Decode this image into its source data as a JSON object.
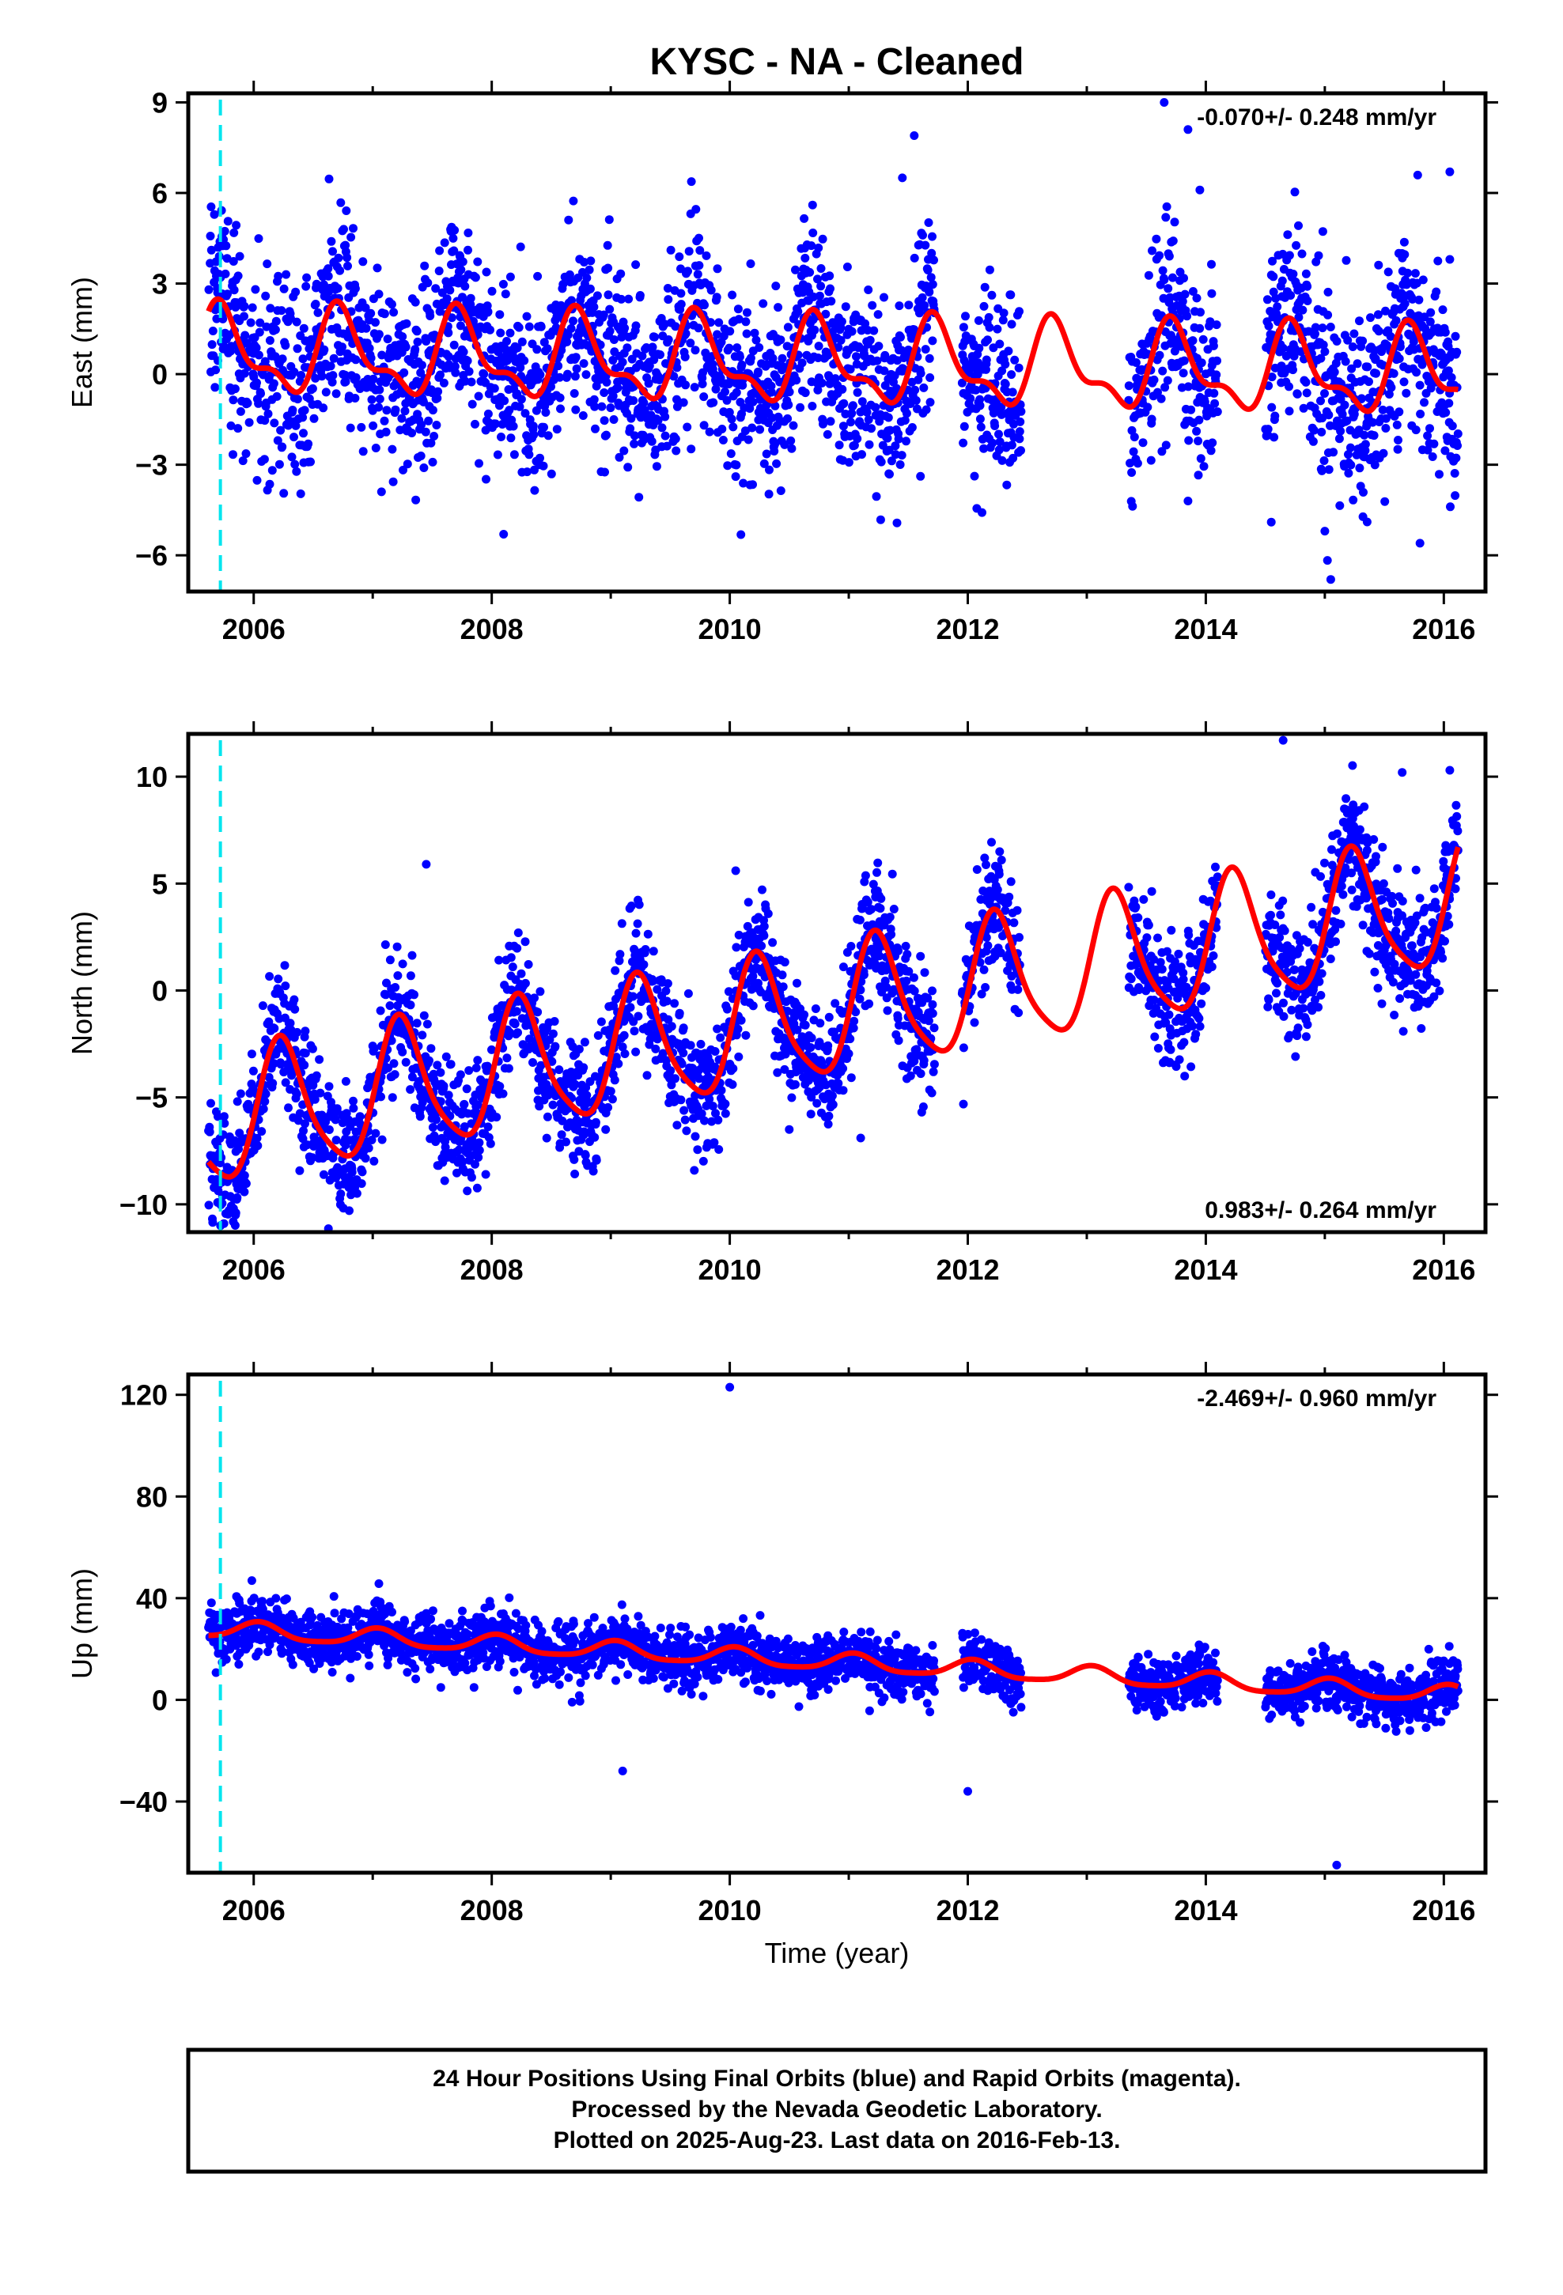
{
  "title": "KYSC  - NA - Cleaned",
  "x_axis_label": "Time (year)",
  "footer_lines": [
    "24 Hour Positions Using Final Orbits (blue) and Rapid Orbits (magenta).",
    "Processed by the Nevada Geodetic Laboratory.",
    "Plotted on 2025-Aug-23. Last data on 2016-Feb-13."
  ],
  "colors": {
    "observations": "#0000ff",
    "model": "#ff0000",
    "event_line": "#00e5ee",
    "frame": "#000000"
  },
  "chart_data": [
    {
      "type": "scatter",
      "ylabel": "East (mm)",
      "rate_text": "-0.070+/- 0.248 mm/yr",
      "rate_position": "top-right",
      "xlim": [
        2005.45,
        2016.35
      ],
      "ylim": [
        -7.2,
        9.3
      ],
      "x_ticks": [
        2006,
        2008,
        2010,
        2012,
        2014,
        2016
      ],
      "y_ticks": [
        -6,
        -3,
        0,
        3,
        6,
        9
      ],
      "event_line_x": 2005.72,
      "data_gaps": [
        [
          2011.72,
          2011.95
        ],
        [
          2012.45,
          2013.35
        ],
        [
          2014.1,
          2014.5
        ]
      ],
      "model": {
        "trend_mm_per_yr": -0.07,
        "offset_mm": 0.35,
        "annual_cos": -0.1,
        "annual_sin": -1.25,
        "semiannual_cos": -0.35,
        "semiannual_sin": 0.45
      },
      "scatter_sd_mm": 1.55,
      "outliers": [
        [
          2011.55,
          7.9
        ],
        [
          2011.45,
          6.5
        ],
        [
          2013.65,
          9.0
        ],
        [
          2013.85,
          8.1
        ],
        [
          2013.95,
          6.1
        ],
        [
          2016.05,
          6.7
        ],
        [
          2016.05,
          3.8
        ],
        [
          2015.05,
          -6.8
        ],
        [
          2015.0,
          -5.2
        ],
        [
          2015.8,
          -5.6
        ],
        [
          2014.55,
          -4.9
        ],
        [
          2008.1,
          -5.3
        ],
        [
          2013.85,
          -4.2
        ]
      ]
    },
    {
      "type": "scatter",
      "ylabel": "North (mm)",
      "rate_text": "0.983+/- 0.264 mm/yr",
      "rate_position": "bottom-right",
      "xlim": [
        2005.45,
        2016.35
      ],
      "ylim": [
        -11.3,
        12.0
      ],
      "x_ticks": [
        2006,
        2008,
        2010,
        2012,
        2014,
        2016
      ],
      "y_ticks": [
        -10,
        -5,
        0,
        5,
        10
      ],
      "event_line_x": 2005.72,
      "data_gaps": [
        [
          2011.72,
          2011.95
        ],
        [
          2012.45,
          2013.35
        ],
        [
          2014.1,
          2014.5
        ]
      ],
      "model": {
        "trend_mm_per_yr": 0.983,
        "offset_mm": -0.9,
        "annual_cos": 0.2,
        "annual_sin": 3.0,
        "semiannual_cos": -0.4,
        "semiannual_sin": 0.4
      },
      "scatter_sd_mm": 1.45,
      "outliers": [
        [
          2015.65,
          10.2
        ],
        [
          2014.65,
          11.7
        ],
        [
          2016.05,
          10.3
        ],
        [
          2010.05,
          5.6
        ],
        [
          2005.85,
          -10.4
        ],
        [
          2005.75,
          -10.9
        ],
        [
          2007.95,
          -8.6
        ],
        [
          2010.5,
          -6.5
        ],
        [
          2011.1,
          -6.9
        ],
        [
          2007.45,
          5.9
        ]
      ]
    },
    {
      "type": "scatter",
      "ylabel": "Up (mm)",
      "rate_text": "-2.469+/- 0.960 mm/yr",
      "rate_position": "top-right",
      "xlim": [
        2005.45,
        2016.35
      ],
      "ylim": [
        -68,
        128
      ],
      "x_ticks": [
        2006,
        2008,
        2010,
        2012,
        2014,
        2016
      ],
      "y_ticks": [
        -40,
        0,
        40,
        80,
        120
      ],
      "event_line_x": 2005.72,
      "data_gaps": [
        [
          2011.72,
          2011.95
        ],
        [
          2012.45,
          2013.35
        ],
        [
          2014.1,
          2014.5
        ]
      ],
      "model": {
        "trend_mm_per_yr": -2.469,
        "offset_mm": 14.5,
        "annual_cos": 3.2,
        "annual_sin": 0.8,
        "semiannual_cos": 0.6,
        "semiannual_sin": 0.4
      },
      "scatter_sd_mm": 5.5,
      "outliers": [
        [
          2010.0,
          123
        ],
        [
          2015.1,
          -65
        ],
        [
          2009.1,
          -28
        ],
        [
          2012.0,
          -36
        ],
        [
          2007.45,
          34
        ]
      ]
    }
  ]
}
